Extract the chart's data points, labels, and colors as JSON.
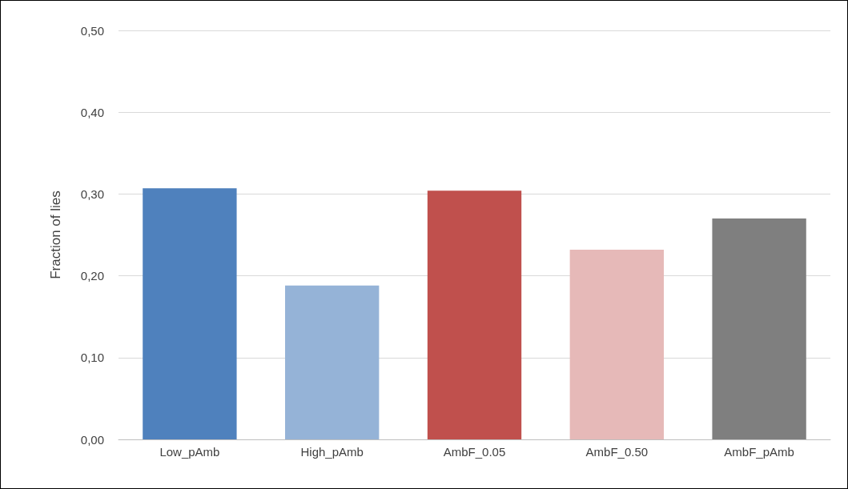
{
  "chart_data": {
    "type": "bar",
    "ylabel": "Fraction of lies",
    "categories": [
      "Low_pAmb",
      "High_pAmb",
      "AmbF_0.05",
      "AmbF_0.50",
      "AmbF_pAmb"
    ],
    "values": [
      0.307,
      0.188,
      0.304,
      0.232,
      0.27
    ],
    "colors": [
      "#4f81bd",
      "#95b3d7",
      "#c0504d",
      "#e6b9b8",
      "#7f7f7f"
    ],
    "ylim": [
      0,
      0.5
    ],
    "yticks": [
      {
        "value": 0,
        "label": "0,00"
      },
      {
        "value": 0.1,
        "label": "0,10"
      },
      {
        "value": 0.2,
        "label": "0,20"
      },
      {
        "value": 0.3,
        "label": "0,30"
      },
      {
        "value": 0.4,
        "label": "0,40"
      },
      {
        "value": 0.5,
        "label": "0,50"
      }
    ],
    "grid": "y"
  }
}
